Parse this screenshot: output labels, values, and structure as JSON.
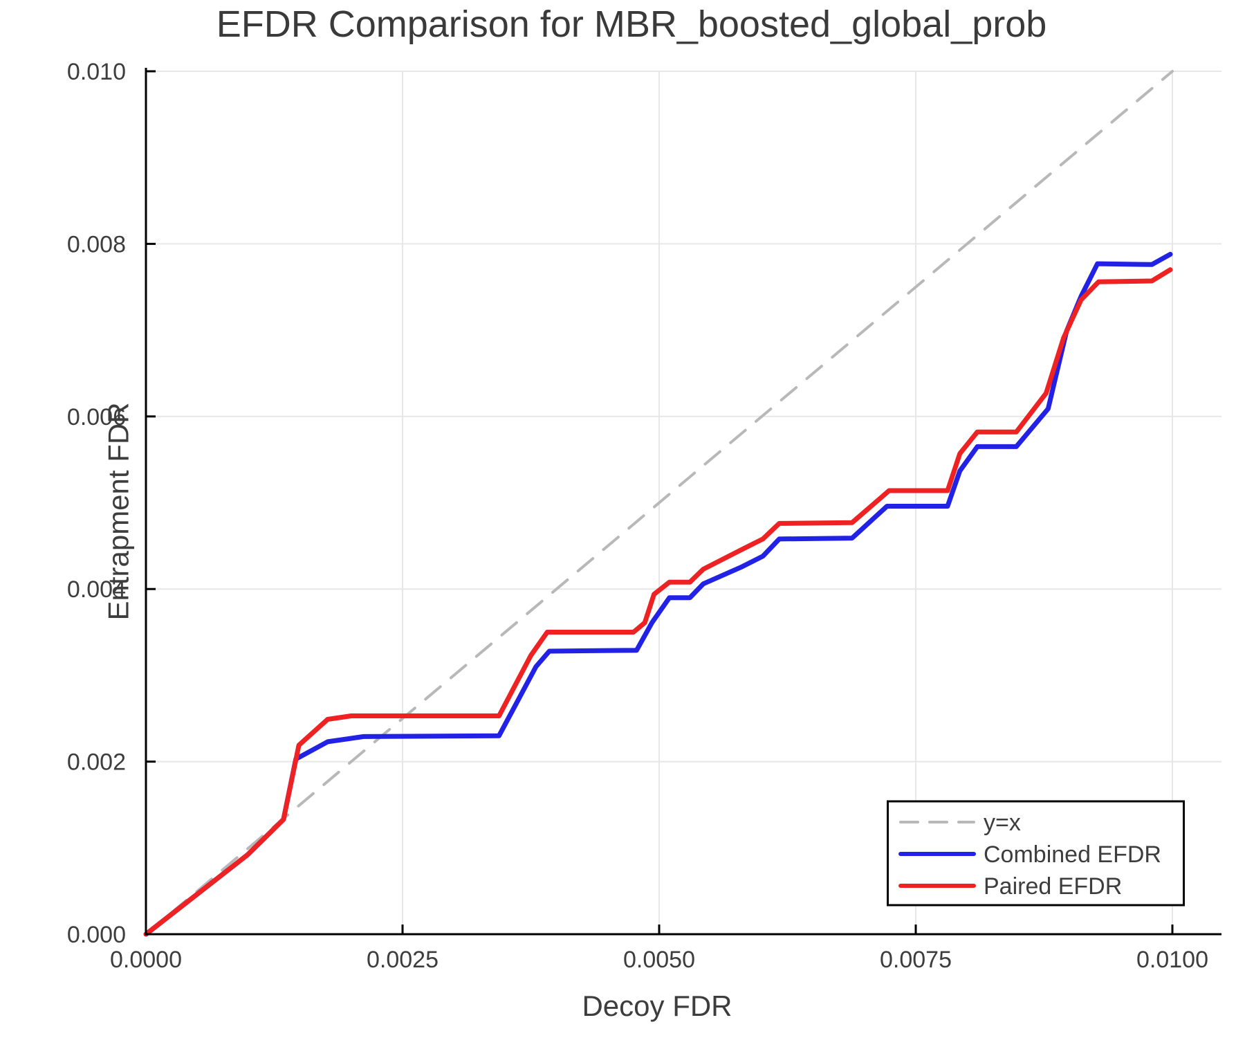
{
  "page": {
    "title": "EFDR Comparison for MBR_boosted_global_prob",
    "xlabel": "Decoy FDR",
    "ylabel": "Entrapment FDR"
  },
  "chart_data": {
    "type": "line",
    "title": "EFDR Comparison for MBR_boosted_global_prob",
    "xlabel": "Decoy FDR",
    "ylabel": "Entrapment FDR",
    "xlim": [
      0.0,
      0.0105
    ],
    "ylim": [
      0.0,
      0.0101
    ],
    "grid": true,
    "background": "#ffffff",
    "axis_color": "#000000",
    "grid_color": "#e7e7e7",
    "text_color": "#3d3d3d",
    "tick_font_size": 34,
    "legend_font_size": 34,
    "xticks": {
      "values": [
        0.0,
        0.0025,
        0.005,
        0.0075,
        0.01
      ],
      "labels": [
        "0.0000",
        "0.0025",
        "0.0050",
        "0.0075",
        "0.0100"
      ]
    },
    "yticks": {
      "values": [
        0.0,
        0.002,
        0.004,
        0.006,
        0.008,
        0.01
      ],
      "labels": [
        "0.000",
        "0.002",
        "0.004",
        "0.006",
        "0.008",
        "0.010"
      ]
    },
    "legend": {
      "position": "bottom-right",
      "entries": [
        "y=x",
        "Combined EFDR",
        "Paired EFDR"
      ]
    },
    "series": [
      {
        "name": "y=x",
        "color": "#b8b8b8",
        "dash": true,
        "width": 4,
        "points": [
          [
            0.0,
            0.0
          ],
          [
            0.01,
            0.01
          ]
        ]
      },
      {
        "name": "Combined EFDR",
        "color": "#2222e6",
        "dash": false,
        "width": 7,
        "points": [
          [
            0.0,
            0.0
          ],
          [
            0.00099,
            0.00092
          ],
          [
            0.00134,
            0.00133
          ],
          [
            0.00146,
            0.00203
          ],
          [
            0.00177,
            0.00223
          ],
          [
            0.00212,
            0.00229
          ],
          [
            0.00344,
            0.0023
          ],
          [
            0.0038,
            0.0031
          ],
          [
            0.00393,
            0.00328
          ],
          [
            0.00478,
            0.00329
          ],
          [
            0.00493,
            0.00361
          ],
          [
            0.0051,
            0.0039
          ],
          [
            0.0053,
            0.0039
          ],
          [
            0.00543,
            0.00406
          ],
          [
            0.00581,
            0.00426
          ],
          [
            0.00601,
            0.00438
          ],
          [
            0.00617,
            0.00458
          ],
          [
            0.00688,
            0.00459
          ],
          [
            0.00722,
            0.00496
          ],
          [
            0.00781,
            0.00496
          ],
          [
            0.00793,
            0.00537
          ],
          [
            0.0081,
            0.00565
          ],
          [
            0.00848,
            0.00565
          ],
          [
            0.00879,
            0.00609
          ],
          [
            0.00897,
            0.00699
          ],
          [
            0.00911,
            0.00739
          ],
          [
            0.00927,
            0.00777
          ],
          [
            0.0098,
            0.00776
          ],
          [
            0.00998,
            0.00788
          ]
        ]
      },
      {
        "name": "Paired EFDR",
        "color": "#ee2222",
        "dash": false,
        "width": 7,
        "points": [
          [
            0.0,
            0.0
          ],
          [
            0.00099,
            0.00092
          ],
          [
            0.00134,
            0.00133
          ],
          [
            0.00149,
            0.00219
          ],
          [
            0.00177,
            0.00249
          ],
          [
            0.002,
            0.00253
          ],
          [
            0.00344,
            0.00253
          ],
          [
            0.00375,
            0.00323
          ],
          [
            0.00391,
            0.0035
          ],
          [
            0.00475,
            0.0035
          ],
          [
            0.00486,
            0.00361
          ],
          [
            0.00495,
            0.00394
          ],
          [
            0.0051,
            0.00408
          ],
          [
            0.0053,
            0.00408
          ],
          [
            0.00543,
            0.00423
          ],
          [
            0.00581,
            0.00446
          ],
          [
            0.00601,
            0.00458
          ],
          [
            0.00617,
            0.00476
          ],
          [
            0.00688,
            0.00477
          ],
          [
            0.00724,
            0.00514
          ],
          [
            0.00781,
            0.00514
          ],
          [
            0.00793,
            0.00557
          ],
          [
            0.0081,
            0.00582
          ],
          [
            0.00848,
            0.00582
          ],
          [
            0.00877,
            0.00627
          ],
          [
            0.00894,
            0.00691
          ],
          [
            0.00911,
            0.00735
          ],
          [
            0.00928,
            0.00756
          ],
          [
            0.0098,
            0.00757
          ],
          [
            0.00998,
            0.0077
          ]
        ]
      }
    ]
  }
}
